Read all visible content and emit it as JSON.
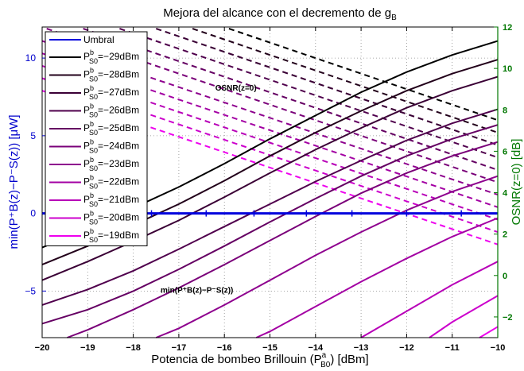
{
  "chart_data": {
    "type": "line",
    "title": "Mejora del alcance con el decremento de g",
    "title_sub": "B",
    "xlabel": {
      "prefix": "Potencia de bombeo Brillouin (P",
      "sup": "a",
      "sub": "B0",
      "suffix": ") [dBm]"
    },
    "ylabel_left": "min(P⁺B(z)−P⁻S(z)) [μW]",
    "ylabel_right": "OSNR(z=0) [dB]",
    "xlim": [
      -20,
      -10
    ],
    "ylim_left": [
      -8,
      12
    ],
    "ylim_right": [
      -3,
      12
    ],
    "xticks": [
      -20,
      -19,
      -18,
      -17,
      -16,
      -15,
      -14,
      -13,
      -12,
      -11,
      -10
    ],
    "xtick_labels": [
      "−20",
      "−19",
      "−18",
      "−17",
      "−16",
      "−15",
      "−14",
      "−13",
      "−12",
      "−11",
      "−10"
    ],
    "yticks_left": [
      -5,
      0,
      5,
      10
    ],
    "ytick_labels_left": [
      "−5",
      "0",
      "5",
      "10"
    ],
    "yticks_right": [
      -2,
      0,
      2,
      4,
      6,
      8,
      10,
      12
    ],
    "ytick_labels_right": [
      "−2",
      "0",
      "2",
      "4",
      "6",
      "8",
      "10",
      "12"
    ],
    "grid": true,
    "legend_position": "top-left",
    "colors": {
      "umbral": "#0000dd",
      "left_axis": "#0000cc",
      "right_axis": "#007700"
    },
    "annotations": [
      {
        "text": "OSNR(z=0)",
        "x": -16.2,
        "y": 7.9,
        "axis": "left"
      },
      {
        "text": "min(P⁺B(z)−P⁻S(z))",
        "x": -17.4,
        "y": -5.1,
        "axis": "left"
      }
    ],
    "threshold": {
      "name": "Umbral",
      "y": 0
    },
    "threshold_markers_x": [
      -17.6,
      -16.4,
      -15.35,
      -14.2,
      -13.2,
      -12.0,
      -10.8
    ],
    "series": [
      {
        "name": "P",
        "sup": "b",
        "sub": "S0",
        "suffix": "=−29dBm",
        "color": "#000000",
        "solid": [
          [
            -20,
            -2.2
          ],
          [
            -19,
            -1.0
          ],
          [
            -18,
            0.35
          ],
          [
            -17,
            1.7
          ],
          [
            -16,
            3.2
          ],
          [
            -15,
            4.8
          ],
          [
            -14,
            6.3
          ],
          [
            -13,
            7.8
          ],
          [
            -12,
            9.1
          ],
          [
            -11,
            10.2
          ],
          [
            -10,
            11.1
          ]
        ],
        "dashed": [
          [
            -15.9,
            11.9
          ],
          [
            -10,
            6.0
          ]
        ]
      },
      {
        "name": "P",
        "sup": "b",
        "sub": "S0",
        "suffix": "=−28dBm",
        "color": "#22001a",
        "solid": [
          [
            -20,
            -3.3
          ],
          [
            -19,
            -2.1
          ],
          [
            -18,
            -0.75
          ],
          [
            -17,
            0.6
          ],
          [
            -16,
            2.1
          ],
          [
            -15,
            3.7
          ],
          [
            -14,
            5.2
          ],
          [
            -13,
            6.6
          ],
          [
            -12,
            7.9
          ],
          [
            -11,
            9.0
          ],
          [
            -10,
            9.9
          ]
        ],
        "dashed": [
          [
            -16.7,
            11.9
          ],
          [
            -10,
            5.2
          ]
        ]
      },
      {
        "name": "P",
        "sup": "b",
        "sub": "S0",
        "suffix": "=−27dBm",
        "color": "#3a0035",
        "solid": [
          [
            -20,
            -4.3
          ],
          [
            -19,
            -3.1
          ],
          [
            -18,
            -1.8
          ],
          [
            -17,
            -0.45
          ],
          [
            -16,
            1.05
          ],
          [
            -15,
            2.6
          ],
          [
            -14,
            4.1
          ],
          [
            -13,
            5.5
          ],
          [
            -12,
            6.8
          ],
          [
            -11,
            7.9
          ],
          [
            -10,
            8.8
          ]
        ],
        "dashed": [
          [
            -17.5,
            11.9
          ],
          [
            -10,
            4.4
          ]
        ]
      },
      {
        "name": "P",
        "sup": "b",
        "sub": "S0",
        "suffix": "=−26dBm",
        "color": "#50004d",
        "solid": [
          [
            -20,
            -5.9
          ],
          [
            -19,
            -4.9
          ],
          [
            -18,
            -3.7
          ],
          [
            -17,
            -2.3
          ],
          [
            -16,
            -0.85
          ],
          [
            -15,
            0.6
          ],
          [
            -14,
            2.05
          ],
          [
            -13,
            3.4
          ],
          [
            -12,
            4.7
          ],
          [
            -11,
            5.8
          ],
          [
            -10,
            6.7
          ]
        ],
        "dashed": [
          [
            -18.3,
            11.9
          ],
          [
            -10,
            3.6
          ]
        ]
      },
      {
        "name": "P",
        "sup": "b",
        "sub": "S0",
        "suffix": "=−25dBm",
        "color": "#650063",
        "solid": [
          [
            -20,
            -7.1
          ],
          [
            -19,
            -6.2
          ],
          [
            -18,
            -5.0
          ],
          [
            -17,
            -3.6
          ],
          [
            -16,
            -2.1
          ],
          [
            -15,
            -0.55
          ],
          [
            -14,
            0.95
          ],
          [
            -13,
            2.4
          ],
          [
            -12,
            3.7
          ],
          [
            -11,
            4.8
          ],
          [
            -10,
            5.7
          ]
        ],
        "dashed": [
          [
            -19.1,
            11.9
          ],
          [
            -10,
            2.8
          ]
        ]
      },
      {
        "name": "P",
        "sup": "b",
        "sub": "S0",
        "suffix": "=−24dBm",
        "color": "#7a0079",
        "solid": [
          [
            -19.45,
            -8.0
          ],
          [
            -19,
            -7.5
          ],
          [
            -18,
            -6.2
          ],
          [
            -17,
            -4.8
          ],
          [
            -16,
            -3.3
          ],
          [
            -15,
            -1.75
          ],
          [
            -14,
            -0.2
          ],
          [
            -13,
            1.3
          ],
          [
            -12,
            2.6
          ],
          [
            -11,
            3.7
          ],
          [
            -10,
            4.6
          ]
        ],
        "dashed": [
          [
            -19.9,
            11.9
          ],
          [
            -10,
            2.0
          ]
        ]
      },
      {
        "name": "P",
        "sup": "b",
        "sub": "S0",
        "suffix": "=−23dBm",
        "color": "#8e008e",
        "solid": [
          [
            -17.5,
            -8.0
          ],
          [
            -17,
            -7.4
          ],
          [
            -16,
            -5.9
          ],
          [
            -15,
            -4.3
          ],
          [
            -14,
            -2.7
          ],
          [
            -13,
            -1.2
          ],
          [
            -12,
            0.2
          ],
          [
            -11,
            1.4
          ],
          [
            -10,
            2.4
          ]
        ],
        "dashed": [
          [
            -20,
            11.1
          ],
          [
            -10,
            1.2
          ]
        ]
      },
      {
        "name": "P",
        "sup": "b",
        "sub": "S0",
        "suffix": "=−22dBm",
        "color": "#a300a3",
        "solid": [
          [
            -15.3,
            -8.0
          ],
          [
            -15,
            -7.6
          ],
          [
            -14,
            -6.0
          ],
          [
            -13,
            -4.4
          ],
          [
            -12,
            -2.9
          ],
          [
            -11,
            -1.5
          ],
          [
            -10,
            -0.3
          ]
        ],
        "dashed": [
          [
            -20,
            10.3
          ],
          [
            -10,
            0.4
          ]
        ]
      },
      {
        "name": "P",
        "sup": "b",
        "sub": "S0",
        "suffix": "=−21dBm",
        "color": "#b800b8",
        "solid": [
          [
            -13.0,
            -8.0
          ],
          [
            -12,
            -6.3
          ],
          [
            -11,
            -4.6
          ],
          [
            -10,
            -3.1
          ]
        ],
        "dashed": [
          [
            -20,
            9.5
          ],
          [
            -10,
            -0.4
          ]
        ]
      },
      {
        "name": "P",
        "sup": "b",
        "sub": "S0",
        "suffix": "=−20dBm",
        "color": "#cc00cc",
        "solid": [
          [
            -11.5,
            -8.0
          ],
          [
            -11,
            -7.0
          ],
          [
            -10,
            -5.3
          ]
        ],
        "dashed": [
          [
            -20,
            8.7
          ],
          [
            -10,
            -1.2
          ]
        ]
      },
      {
        "name": "P",
        "sup": "b",
        "sub": "S0",
        "suffix": "=−19dBm",
        "color": "#ee00ee",
        "solid": [
          [
            -10.4,
            -8.0
          ],
          [
            -10,
            -7.3
          ]
        ],
        "dashed": [
          [
            -20,
            7.9
          ],
          [
            -10,
            -2.0
          ]
        ]
      }
    ]
  }
}
